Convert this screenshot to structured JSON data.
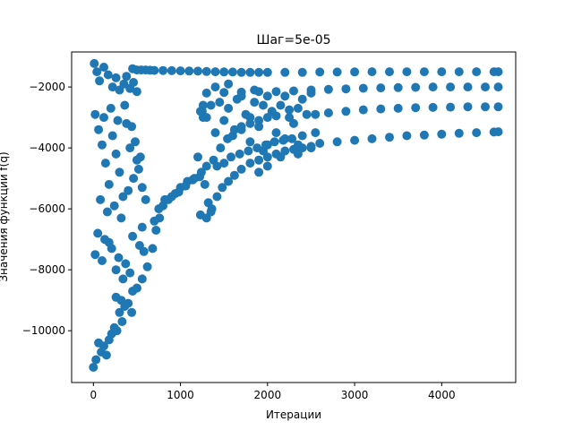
{
  "chart_data": {
    "type": "scatter",
    "title": "Шаг=5e-05",
    "xlabel": "Итерации",
    "ylabel": "Значения функции f(q)",
    "xlim": [
      -250,
      4850
    ],
    "ylim": [
      -11700,
      -850
    ],
    "xticks": [
      0,
      1000,
      2000,
      3000,
      4000
    ],
    "yticks": [
      -10000,
      -8000,
      -6000,
      -4000,
      -2000
    ],
    "grid": false,
    "legend": "none",
    "marker_color": "#1f77b4",
    "series": [
      {
        "points": [
          [
            0,
            -11200
          ],
          [
            30,
            -10950
          ],
          [
            60,
            -10400
          ],
          [
            90,
            -10700
          ],
          [
            120,
            -10500
          ],
          [
            150,
            -10800
          ],
          [
            180,
            -10300
          ],
          [
            210,
            -10100
          ],
          [
            240,
            -9900
          ],
          [
            270,
            -10000
          ],
          [
            300,
            -9400
          ],
          [
            330,
            -9700
          ],
          [
            360,
            -9200
          ],
          [
            10,
            -1230
          ],
          [
            40,
            -1500
          ],
          [
            70,
            -1800
          ],
          [
            120,
            -1350
          ],
          [
            170,
            -1600
          ],
          [
            220,
            -2000
          ],
          [
            260,
            -1700
          ],
          [
            300,
            -2100
          ],
          [
            350,
            -1900
          ],
          [
            420,
            -2050
          ],
          [
            500,
            -2150
          ],
          [
            380,
            -1650
          ],
          [
            460,
            -1850
          ],
          [
            20,
            -2900
          ],
          [
            60,
            -3400
          ],
          [
            100,
            -3900
          ],
          [
            140,
            -4500
          ],
          [
            180,
            -5200
          ],
          [
            220,
            -3600
          ],
          [
            260,
            -4200
          ],
          [
            300,
            -4800
          ],
          [
            340,
            -5600
          ],
          [
            380,
            -3200
          ],
          [
            420,
            -4000
          ],
          [
            460,
            -5000
          ],
          [
            500,
            -4400
          ],
          [
            80,
            -5700
          ],
          [
            160,
            -6100
          ],
          [
            240,
            -5900
          ],
          [
            320,
            -6300
          ],
          [
            400,
            -5400
          ],
          [
            480,
            -3800
          ],
          [
            120,
            -3000
          ],
          [
            200,
            -2700
          ],
          [
            280,
            -3100
          ],
          [
            360,
            -2600
          ],
          [
            440,
            -3300
          ],
          [
            520,
            -4700
          ],
          [
            560,
            -5300
          ],
          [
            50,
            -6800
          ],
          [
            130,
            -7000
          ],
          [
            210,
            -7300
          ],
          [
            290,
            -7600
          ],
          [
            370,
            -7800
          ],
          [
            450,
            -6900
          ],
          [
            530,
            -7200
          ],
          [
            20,
            -7500
          ],
          [
            100,
            -7700
          ],
          [
            180,
            -7100
          ],
          [
            260,
            -8000
          ],
          [
            340,
            -8300
          ],
          [
            420,
            -8100
          ],
          [
            500,
            -8600
          ],
          [
            580,
            -7400
          ],
          [
            260,
            -8900
          ],
          [
            320,
            -9000
          ],
          [
            400,
            -9100
          ],
          [
            440,
            -9400
          ],
          [
            540,
            -4300
          ],
          [
            600,
            -5700
          ],
          [
            560,
            -6600
          ],
          [
            450,
            -1400
          ],
          [
            500,
            -1440
          ],
          [
            550,
            -1440
          ],
          [
            600,
            -1440
          ],
          [
            650,
            -1450
          ],
          [
            700,
            -1455
          ],
          [
            800,
            -1460
          ],
          [
            900,
            -1465
          ],
          [
            1000,
            -1470
          ],
          [
            1100,
            -1475
          ],
          [
            1200,
            -1480
          ],
          [
            1300,
            -1490
          ],
          [
            1400,
            -1500
          ],
          [
            1500,
            -1505
          ],
          [
            1600,
            -1510
          ],
          [
            1700,
            -1520
          ],
          [
            1800,
            -1520
          ],
          [
            1900,
            -1520
          ],
          [
            2000,
            -1520
          ],
          [
            2200,
            -1520
          ],
          [
            2400,
            -1520
          ],
          [
            2600,
            -1510
          ],
          [
            2800,
            -1510
          ],
          [
            3000,
            -1505
          ],
          [
            3200,
            -1500
          ],
          [
            3400,
            -1500
          ],
          [
            3600,
            -1500
          ],
          [
            3800,
            -1500
          ],
          [
            4000,
            -1500
          ],
          [
            4200,
            -1500
          ],
          [
            4400,
            -1500
          ],
          [
            4600,
            -1500
          ],
          [
            4650,
            -1500
          ],
          [
            1300,
            -2200
          ],
          [
            1500,
            -2180
          ],
          [
            1700,
            -2170
          ],
          [
            1900,
            -2150
          ],
          [
            2100,
            -2150
          ],
          [
            2300,
            -2130
          ],
          [
            2500,
            -2100
          ],
          [
            2700,
            -2080
          ],
          [
            2900,
            -2060
          ],
          [
            3100,
            -2040
          ],
          [
            3300,
            -2030
          ],
          [
            3500,
            -2020
          ],
          [
            3700,
            -2010
          ],
          [
            3900,
            -2000
          ],
          [
            4100,
            -2000
          ],
          [
            4300,
            -2000
          ],
          [
            4500,
            -2000
          ],
          [
            4650,
            -2000
          ],
          [
            1250,
            -2800
          ],
          [
            1350,
            -2600
          ],
          [
            1450,
            -2500
          ],
          [
            1550,
            -2700
          ],
          [
            1650,
            -2400
          ],
          [
            1750,
            -2900
          ],
          [
            1850,
            -2500
          ],
          [
            1950,
            -2600
          ],
          [
            2050,
            -2800
          ],
          [
            2150,
            -2600
          ],
          [
            2250,
            -2750
          ],
          [
            2350,
            -2700
          ],
          [
            2450,
            -2900
          ],
          [
            2550,
            -2900
          ],
          [
            2700,
            -2850
          ],
          [
            2900,
            -2800
          ],
          [
            3100,
            -2750
          ],
          [
            3300,
            -2720
          ],
          [
            3500,
            -2700
          ],
          [
            3700,
            -2680
          ],
          [
            3900,
            -2670
          ],
          [
            4100,
            -2660
          ],
          [
            4300,
            -2650
          ],
          [
            4500,
            -2650
          ],
          [
            4650,
            -2650
          ],
          [
            2600,
            -3850
          ],
          [
            2800,
            -3800
          ],
          [
            3000,
            -3750
          ],
          [
            3200,
            -3700
          ],
          [
            3400,
            -3650
          ],
          [
            3600,
            -3600
          ],
          [
            3800,
            -3580
          ],
          [
            4000,
            -3550
          ],
          [
            4200,
            -3520
          ],
          [
            4400,
            -3500
          ],
          [
            4600,
            -3480
          ],
          [
            4650,
            -3470
          ],
          [
            1300,
            -3000
          ],
          [
            1400,
            -3500
          ],
          [
            1500,
            -3100
          ],
          [
            1600,
            -3600
          ],
          [
            1700,
            -3400
          ],
          [
            1800,
            -3800
          ],
          [
            1900,
            -3300
          ],
          [
            2000,
            -3900
          ],
          [
            2100,
            -3500
          ],
          [
            2200,
            -3700
          ],
          [
            2300,
            -3200
          ],
          [
            2400,
            -3600
          ],
          [
            2500,
            -4000
          ],
          [
            2550,
            -3500
          ],
          [
            1950,
            -4100
          ],
          [
            2150,
            -4300
          ],
          [
            2350,
            -4200
          ],
          [
            1800,
            -3000
          ],
          [
            2250,
            -3000
          ],
          [
            450,
            -8700
          ],
          [
            500,
            -8600
          ],
          [
            560,
            -8300
          ],
          [
            620,
            -7900
          ],
          [
            680,
            -7300
          ],
          [
            720,
            -6700
          ],
          [
            760,
            -6300
          ],
          [
            800,
            -5900
          ],
          [
            860,
            -5700
          ],
          [
            940,
            -5500
          ],
          [
            1000,
            -5300
          ],
          [
            1080,
            -5100
          ],
          [
            1160,
            -5000
          ],
          [
            1220,
            -4950
          ],
          [
            1280,
            -5200
          ],
          [
            1320,
            -5800
          ],
          [
            1360,
            -6000
          ],
          [
            1420,
            -5600
          ],
          [
            1480,
            -5300
          ],
          [
            1550,
            -5100
          ],
          [
            1620,
            -4900
          ],
          [
            1700,
            -4700
          ],
          [
            1800,
            -4500
          ],
          [
            1900,
            -4400
          ],
          [
            2000,
            -4300
          ],
          [
            2100,
            -4200
          ],
          [
            2200,
            -4100
          ],
          [
            2300,
            -4050
          ],
          [
            2400,
            -4000
          ],
          [
            2500,
            -3950
          ],
          [
            700,
            -6400
          ],
          [
            750,
            -6000
          ],
          [
            820,
            -5700
          ],
          [
            900,
            -5600
          ],
          [
            980,
            -5450
          ],
          [
            1060,
            -5250
          ],
          [
            1140,
            -5050
          ],
          [
            1230,
            -6200
          ],
          [
            1300,
            -6300
          ],
          [
            1350,
            -6100
          ],
          [
            1420,
            -4600
          ],
          [
            1500,
            -4500
          ],
          [
            1580,
            -4300
          ],
          [
            1680,
            -4200
          ],
          [
            1780,
            -4100
          ],
          [
            1880,
            -4000
          ],
          [
            1980,
            -3900
          ],
          [
            2080,
            -3800
          ],
          [
            2180,
            -3750
          ],
          [
            2280,
            -3700
          ],
          [
            1240,
            -4800
          ],
          [
            1300,
            -4600
          ],
          [
            1380,
            -4400
          ],
          [
            1460,
            -4000
          ],
          [
            1540,
            -3700
          ],
          [
            1620,
            -3400
          ],
          [
            1700,
            -3300
          ],
          [
            1800,
            -3200
          ],
          [
            1900,
            -3100
          ],
          [
            2000,
            -3000
          ],
          [
            2100,
            -2950
          ],
          [
            1900,
            -4800
          ],
          [
            2000,
            -4600
          ],
          [
            1200,
            -4300
          ],
          [
            1260,
            -3000
          ],
          [
            1230,
            -2800
          ],
          [
            1260,
            -2600
          ],
          [
            1400,
            -2000
          ],
          [
            1550,
            -1900
          ],
          [
            1700,
            -2300
          ],
          [
            1850,
            -2100
          ],
          [
            2000,
            -2300
          ],
          [
            2200,
            -2300
          ],
          [
            2400,
            -2400
          ],
          [
            2500,
            -2200
          ],
          [
            2350,
            -3900
          ]
        ]
      }
    ]
  }
}
